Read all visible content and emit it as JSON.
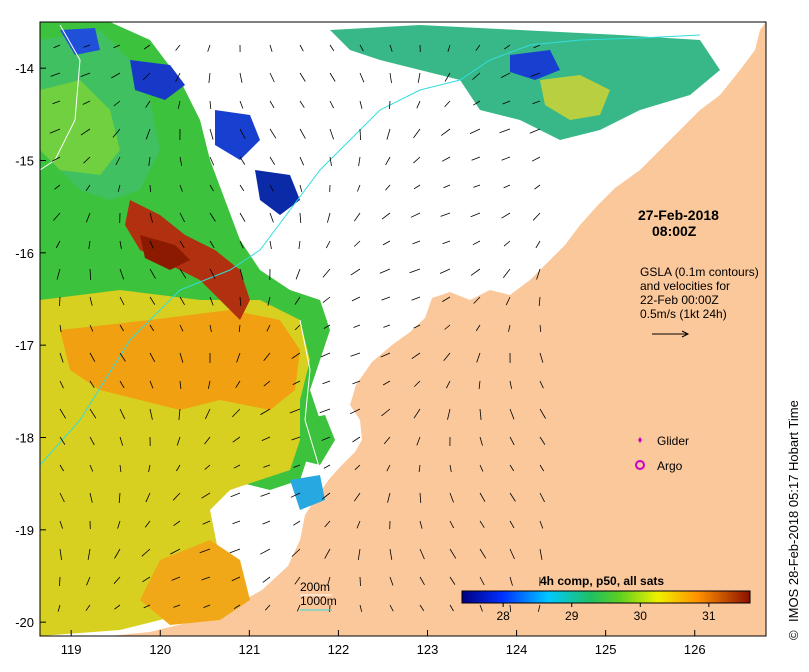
{
  "map": {
    "lon_ticks": [
      "119",
      "120",
      "121",
      "122",
      "123",
      "124",
      "125",
      "126"
    ],
    "lat_ticks": [
      "-14",
      "-15",
      "-16",
      "-17",
      "-18",
      "-19",
      "-20"
    ],
    "lon_range": [
      118.65,
      126.8
    ],
    "lat_range": [
      -20.15,
      -13.5
    ]
  },
  "annotations": {
    "date": "27-Feb-2018",
    "time": "08:00Z",
    "gsla_line1": "GSLA (0.1m contours)",
    "gsla_line2": "and velocities for",
    "gsla_line3": "22-Feb 00:00Z",
    "gsla_line4": "0.5m/s (1kt 24h)"
  },
  "legend": {
    "glider": "Glider",
    "argo": "Argo",
    "glider_color": "#cc00cc",
    "argo_color": "#cc00cc"
  },
  "isobaths": {
    "d200": "200m",
    "d1000": "1000m",
    "color": "#33dddd"
  },
  "colorbar": {
    "title": "4h comp, p50, all sats",
    "ticks": [
      "28",
      "29",
      "30",
      "31"
    ],
    "range": [
      27.4,
      31.6
    ]
  },
  "credit": "IMOS 28-Feb-2018 05:17 Hobart Time",
  "copyright": "©",
  "colors": {
    "land": "#fbc89b",
    "cold": "#00008f",
    "warm": "#8b1a00"
  }
}
